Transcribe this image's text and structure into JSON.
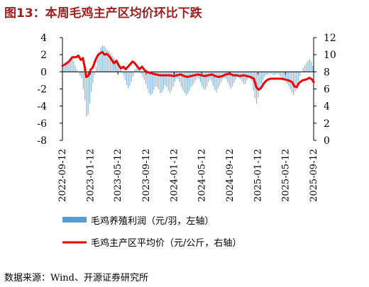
{
  "title": "图13：本周毛鸡主产区均价环比下跌",
  "source": "数据来源：Wind、开源证券研究所",
  "colors": {
    "bar": "#5b9bd5",
    "line": "#ee0000",
    "title": "#9c1f1f"
  },
  "chart_data": {
    "type": "bar+line",
    "x_tick_labels": [
      "2022-09-12",
      "2023-01-12",
      "2023-05-12",
      "2023-09-12",
      "2024-01-12",
      "2024-05-12",
      "2024-09-12",
      "2025-01-12",
      "2025-05-12",
      "2025-09-12"
    ],
    "x_range": [
      "2022-09-12",
      "2025-09-12"
    ],
    "y_left": {
      "ylim": [
        -8,
        4
      ],
      "ticks": [
        -8,
        -6,
        -4,
        -2,
        0,
        2,
        4
      ]
    },
    "y_right": {
      "ylim": [
        0,
        12
      ],
      "ticks": [
        0,
        2,
        4,
        6,
        8,
        10,
        12
      ]
    },
    "grid": false,
    "legend_position": "bottom",
    "series": [
      {
        "name": "毛鸡养殖利润（元/羽，左轴）",
        "type": "bar",
        "axis": "left",
        "points": [
          [
            "2022-09-12",
            0.4
          ],
          [
            "2022-10-05",
            1.0
          ],
          [
            "2022-10-25",
            1.6
          ],
          [
            "2022-11-15",
            0.2
          ],
          [
            "2022-12-05",
            -0.8
          ],
          [
            "2022-12-20",
            -3.5
          ],
          [
            "2022-12-28",
            -5.8
          ],
          [
            "2023-01-05",
            -4.5
          ],
          [
            "2023-01-15",
            -2.5
          ],
          [
            "2023-01-25",
            -1.0
          ],
          [
            "2023-02-05",
            0.5
          ],
          [
            "2023-02-15",
            1.8
          ],
          [
            "2023-02-25",
            2.8
          ],
          [
            "2023-03-05",
            3.1
          ],
          [
            "2023-03-15",
            3.0
          ],
          [
            "2023-03-25",
            2.6
          ],
          [
            "2023-04-05",
            2.4
          ],
          [
            "2023-04-15",
            2.0
          ],
          [
            "2023-04-25",
            1.6
          ],
          [
            "2023-05-05",
            1.2
          ],
          [
            "2023-05-15",
            0.8
          ],
          [
            "2023-05-25",
            0.4
          ],
          [
            "2023-06-05",
            -0.4
          ],
          [
            "2023-06-15",
            -1.2
          ],
          [
            "2023-06-25",
            -2.0
          ],
          [
            "2023-07-05",
            -1.5
          ],
          [
            "2023-07-15",
            -0.8
          ],
          [
            "2023-07-25",
            0.4
          ],
          [
            "2023-08-05",
            0.5
          ],
          [
            "2023-08-15",
            0.2
          ],
          [
            "2023-08-25",
            -0.5
          ],
          [
            "2023-09-05",
            -1.0
          ],
          [
            "2023-09-15",
            -1.8
          ],
          [
            "2023-09-25",
            -2.5
          ],
          [
            "2023-10-05",
            -2.8
          ],
          [
            "2023-10-15",
            -2.2
          ],
          [
            "2023-10-25",
            -1.6
          ],
          [
            "2023-11-05",
            -2.0
          ],
          [
            "2023-11-15",
            -2.6
          ],
          [
            "2023-11-25",
            -2.2
          ],
          [
            "2023-12-05",
            -1.5
          ],
          [
            "2023-12-15",
            -2.0
          ],
          [
            "2023-12-25",
            -2.5
          ],
          [
            "2024-01-05",
            -2.0
          ],
          [
            "2024-01-15",
            -1.2
          ],
          [
            "2024-01-25",
            -0.6
          ],
          [
            "2024-02-05",
            -1.2
          ],
          [
            "2024-02-15",
            -2.0
          ],
          [
            "2024-02-25",
            -2.4
          ],
          [
            "2024-03-05",
            -2.8
          ],
          [
            "2024-03-15",
            -2.4
          ],
          [
            "2024-03-25",
            -1.8
          ],
          [
            "2024-04-05",
            -1.5
          ],
          [
            "2024-04-15",
            -1.0
          ],
          [
            "2024-04-25",
            -0.6
          ],
          [
            "2024-05-05",
            -1.2
          ],
          [
            "2024-05-15",
            -1.8
          ],
          [
            "2024-05-25",
            -2.2
          ],
          [
            "2024-06-05",
            -1.6
          ],
          [
            "2024-06-15",
            -0.8
          ],
          [
            "2024-06-25",
            -1.2
          ],
          [
            "2024-07-05",
            -2.0
          ],
          [
            "2024-07-15",
            -2.4
          ],
          [
            "2024-07-25",
            -1.8
          ],
          [
            "2024-08-05",
            -1.2
          ],
          [
            "2024-08-15",
            -0.6
          ],
          [
            "2024-08-25",
            -0.8
          ],
          [
            "2024-09-05",
            -1.4
          ],
          [
            "2024-09-15",
            -2.0
          ],
          [
            "2024-09-25",
            -1.6
          ],
          [
            "2024-10-05",
            -1.0
          ],
          [
            "2024-10-15",
            -0.5
          ],
          [
            "2024-10-25",
            -0.8
          ],
          [
            "2024-11-05",
            -1.2
          ],
          [
            "2024-11-15",
            -1.6
          ],
          [
            "2024-11-25",
            -1.0
          ],
          [
            "2024-12-05",
            -0.6
          ],
          [
            "2024-12-15",
            -1.0
          ],
          [
            "2024-12-25",
            -2.5
          ],
          [
            "2025-01-05",
            -3.8
          ],
          [
            "2025-01-15",
            -2.8
          ],
          [
            "2025-01-25",
            -1.5
          ],
          [
            "2025-02-05",
            -0.8
          ],
          [
            "2025-02-15",
            -0.4
          ],
          [
            "2025-02-25",
            -0.3
          ],
          [
            "2025-03-05",
            -0.2
          ],
          [
            "2025-03-15",
            -0.3
          ],
          [
            "2025-03-25",
            -0.4
          ],
          [
            "2025-04-05",
            -0.2
          ],
          [
            "2025-04-15",
            -0.4
          ],
          [
            "2025-04-25",
            -0.6
          ],
          [
            "2025-05-05",
            -0.8
          ],
          [
            "2025-05-15",
            -1.2
          ],
          [
            "2025-05-25",
            -1.6
          ],
          [
            "2025-06-05",
            -2.2
          ],
          [
            "2025-06-15",
            -2.8
          ],
          [
            "2025-06-25",
            -2.2
          ],
          [
            "2025-07-05",
            -1.2
          ],
          [
            "2025-07-15",
            -0.4
          ],
          [
            "2025-07-25",
            0.3
          ],
          [
            "2025-08-05",
            0.8
          ],
          [
            "2025-08-15",
            1.2
          ],
          [
            "2025-08-25",
            1.5
          ],
          [
            "2025-09-05",
            1.0
          ],
          [
            "2025-09-12",
            0.3
          ]
        ]
      },
      {
        "name": "毛鸡主产区平均价（元/公斤，右轴）",
        "type": "line",
        "axis": "right",
        "points": [
          [
            "2022-09-12",
            8.7
          ],
          [
            "2022-09-25",
            8.9
          ],
          [
            "2022-10-10",
            9.2
          ],
          [
            "2022-10-25",
            9.7
          ],
          [
            "2022-11-10",
            9.7
          ],
          [
            "2022-11-20",
            9.9
          ],
          [
            "2022-12-01",
            9.4
          ],
          [
            "2022-12-10",
            9.6
          ],
          [
            "2022-12-18",
            8.6
          ],
          [
            "2022-12-25",
            7.4
          ],
          [
            "2023-01-02",
            7.5
          ],
          [
            "2023-01-12",
            8.2
          ],
          [
            "2023-01-22",
            8.5
          ],
          [
            "2023-02-05",
            9.5
          ],
          [
            "2023-02-15",
            10.0
          ],
          [
            "2023-02-25",
            10.2
          ],
          [
            "2023-03-05",
            10.3
          ],
          [
            "2023-03-15",
            10.0
          ],
          [
            "2023-03-25",
            10.1
          ],
          [
            "2023-04-05",
            9.8
          ],
          [
            "2023-04-15",
            9.4
          ],
          [
            "2023-04-25",
            9.0
          ],
          [
            "2023-05-05",
            9.3
          ],
          [
            "2023-05-15",
            8.8
          ],
          [
            "2023-05-25",
            8.4
          ],
          [
            "2023-06-05",
            8.6
          ],
          [
            "2023-06-15",
            8.3
          ],
          [
            "2023-06-25",
            8.6
          ],
          [
            "2023-07-05",
            8.9
          ],
          [
            "2023-07-15",
            9.2
          ],
          [
            "2023-07-25",
            9.0
          ],
          [
            "2023-08-05",
            8.6
          ],
          [
            "2023-08-15",
            8.3
          ],
          [
            "2023-08-25",
            8.6
          ],
          [
            "2023-09-05",
            8.2
          ],
          [
            "2023-09-15",
            8.0
          ],
          [
            "2023-09-25",
            7.9
          ],
          [
            "2023-10-10",
            7.8
          ],
          [
            "2023-10-25",
            7.7
          ],
          [
            "2023-11-10",
            7.6
          ],
          [
            "2023-11-25",
            7.6
          ],
          [
            "2023-12-10",
            7.6
          ],
          [
            "2023-12-25",
            7.6
          ],
          [
            "2024-01-10",
            7.5
          ],
          [
            "2024-01-25",
            7.6
          ],
          [
            "2024-02-10",
            7.7
          ],
          [
            "2024-02-25",
            7.5
          ],
          [
            "2024-03-10",
            7.4
          ],
          [
            "2024-03-25",
            7.5
          ],
          [
            "2024-04-10",
            7.6
          ],
          [
            "2024-04-25",
            7.7
          ],
          [
            "2024-05-10",
            7.6
          ],
          [
            "2024-05-25",
            7.5
          ],
          [
            "2024-06-10",
            7.6
          ],
          [
            "2024-06-25",
            7.7
          ],
          [
            "2024-07-10",
            7.5
          ],
          [
            "2024-07-25",
            7.4
          ],
          [
            "2024-08-10",
            7.5
          ],
          [
            "2024-08-25",
            7.7
          ],
          [
            "2024-09-10",
            7.8
          ],
          [
            "2024-09-25",
            7.6
          ],
          [
            "2024-10-10",
            7.6
          ],
          [
            "2024-10-25",
            7.5
          ],
          [
            "2024-11-10",
            7.6
          ],
          [
            "2024-11-25",
            7.5
          ],
          [
            "2024-12-10",
            7.4
          ],
          [
            "2024-12-25",
            7.2
          ],
          [
            "2025-01-05",
            6.2
          ],
          [
            "2025-01-15",
            5.9
          ],
          [
            "2025-01-25",
            6.1
          ],
          [
            "2025-02-05",
            6.6
          ],
          [
            "2025-02-15",
            6.9
          ],
          [
            "2025-02-25",
            7.1
          ],
          [
            "2025-03-10",
            7.2
          ],
          [
            "2025-03-25",
            7.2
          ],
          [
            "2025-04-10",
            7.2
          ],
          [
            "2025-04-25",
            7.2
          ],
          [
            "2025-05-10",
            7.1
          ],
          [
            "2025-05-25",
            7.0
          ],
          [
            "2025-06-10",
            6.8
          ],
          [
            "2025-06-20",
            6.3
          ],
          [
            "2025-06-30",
            6.2
          ],
          [
            "2025-07-10",
            6.7
          ],
          [
            "2025-07-25",
            7.0
          ],
          [
            "2025-08-10",
            7.1
          ],
          [
            "2025-08-25",
            7.3
          ],
          [
            "2025-09-05",
            7.1
          ],
          [
            "2025-09-12",
            6.8
          ]
        ]
      }
    ]
  }
}
